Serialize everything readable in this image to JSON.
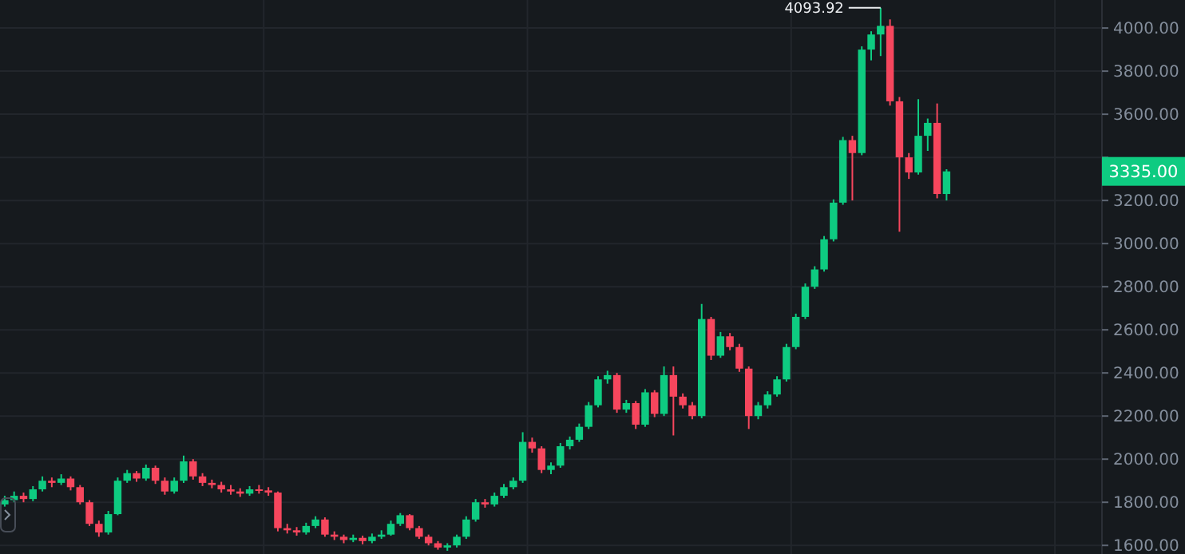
{
  "chart_data": {
    "type": "candlestick",
    "categories": [
      null,
      null,
      null,
      null,
      null,
      null,
      null,
      null,
      null,
      null,
      null,
      null,
      null,
      null,
      null,
      null,
      null,
      null,
      null,
      null,
      null,
      null,
      null,
      null,
      null,
      null,
      null,
      null,
      null,
      null,
      null,
      null,
      null,
      null,
      null,
      null,
      null,
      null,
      null,
      null,
      null,
      null,
      null,
      null,
      null,
      null,
      null,
      null,
      null,
      null,
      null,
      null,
      null,
      null,
      null,
      null,
      null,
      null,
      null,
      null,
      null,
      null,
      null,
      null,
      null,
      null,
      null,
      null,
      null,
      null,
      null,
      null,
      null,
      null,
      null,
      null,
      null,
      null,
      null,
      null,
      null,
      null,
      null,
      null,
      null,
      null,
      null,
      null,
      null,
      null,
      null,
      null,
      null,
      null,
      null,
      null,
      null,
      null,
      null,
      null,
      null,
      null,
      null,
      null,
      null,
      null,
      null,
      null,
      null,
      null,
      null,
      null,
      null,
      null,
      null,
      null,
      null
    ],
    "ohlc": [
      [
        1790,
        1830,
        1780,
        1810
      ],
      [
        1810,
        1850,
        1800,
        1830
      ],
      [
        1830,
        1845,
        1800,
        1815
      ],
      [
        1815,
        1875,
        1805,
        1860
      ],
      [
        1860,
        1920,
        1850,
        1900
      ],
      [
        1900,
        1915,
        1870,
        1890
      ],
      [
        1890,
        1930,
        1880,
        1910
      ],
      [
        1910,
        1920,
        1855,
        1870
      ],
      [
        1870,
        1880,
        1790,
        1800
      ],
      [
        1800,
        1810,
        1690,
        1700
      ],
      [
        1700,
        1715,
        1640,
        1660
      ],
      [
        1660,
        1760,
        1650,
        1745
      ],
      [
        1745,
        1915,
        1740,
        1900
      ],
      [
        1900,
        1950,
        1890,
        1935
      ],
      [
        1935,
        1945,
        1895,
        1910
      ],
      [
        1910,
        1975,
        1900,
        1960
      ],
      [
        1960,
        1970,
        1885,
        1900
      ],
      [
        1900,
        1915,
        1835,
        1850
      ],
      [
        1850,
        1915,
        1840,
        1900
      ],
      [
        1900,
        2016,
        1890,
        1990
      ],
      [
        1990,
        2000,
        1905,
        1920
      ],
      [
        1920,
        1935,
        1875,
        1890
      ],
      [
        1890,
        1905,
        1865,
        1880
      ],
      [
        1880,
        1895,
        1845,
        1860
      ],
      [
        1860,
        1880,
        1835,
        1850
      ],
      [
        1850,
        1865,
        1825,
        1840
      ],
      [
        1840,
        1875,
        1830,
        1860
      ],
      [
        1860,
        1880,
        1840,
        1855
      ],
      [
        1855,
        1870,
        1830,
        1845
      ],
      [
        1845,
        1850,
        1665,
        1680
      ],
      [
        1680,
        1700,
        1655,
        1670
      ],
      [
        1670,
        1685,
        1645,
        1660
      ],
      [
        1660,
        1705,
        1650,
        1690
      ],
      [
        1690,
        1735,
        1680,
        1720
      ],
      [
        1720,
        1730,
        1640,
        1650
      ],
      [
        1650,
        1665,
        1625,
        1640
      ],
      [
        1640,
        1650,
        1610,
        1625
      ],
      [
        1625,
        1650,
        1615,
        1635
      ],
      [
        1635,
        1645,
        1605,
        1620
      ],
      [
        1620,
        1655,
        1610,
        1640
      ],
      [
        1640,
        1670,
        1630,
        1650
      ],
      [
        1650,
        1715,
        1645,
        1700
      ],
      [
        1700,
        1750,
        1690,
        1740
      ],
      [
        1740,
        1745,
        1670,
        1680
      ],
      [
        1680,
        1690,
        1630,
        1640
      ],
      [
        1640,
        1650,
        1600,
        1610
      ],
      [
        1610,
        1620,
        1580,
        1590
      ],
      [
        1590,
        1610,
        1575,
        1600
      ],
      [
        1600,
        1650,
        1590,
        1640
      ],
      [
        1640,
        1735,
        1630,
        1720
      ],
      [
        1720,
        1815,
        1710,
        1800
      ],
      [
        1800,
        1815,
        1775,
        1790
      ],
      [
        1790,
        1845,
        1780,
        1830
      ],
      [
        1830,
        1885,
        1820,
        1870
      ],
      [
        1870,
        1915,
        1860,
        1900
      ],
      [
        1900,
        2125,
        1890,
        2080
      ],
      [
        2080,
        2100,
        2030,
        2050
      ],
      [
        2050,
        2060,
        1935,
        1950
      ],
      [
        1950,
        1985,
        1930,
        1970
      ],
      [
        1970,
        2075,
        1960,
        2060
      ],
      [
        2060,
        2105,
        2045,
        2090
      ],
      [
        2090,
        2165,
        2080,
        2150
      ],
      [
        2150,
        2265,
        2140,
        2250
      ],
      [
        2250,
        2385,
        2240,
        2370
      ],
      [
        2370,
        2410,
        2350,
        2390
      ],
      [
        2390,
        2400,
        2215,
        2230
      ],
      [
        2230,
        2275,
        2215,
        2260
      ],
      [
        2260,
        2270,
        2140,
        2160
      ],
      [
        2160,
        2325,
        2150,
        2310
      ],
      [
        2310,
        2320,
        2195,
        2210
      ],
      [
        2210,
        2430,
        2200,
        2390
      ],
      [
        2390,
        2430,
        2110,
        2290
      ],
      [
        2290,
        2305,
        2235,
        2250
      ],
      [
        2250,
        2265,
        2185,
        2200
      ],
      [
        2200,
        2720,
        2190,
        2650
      ],
      [
        2650,
        2660,
        2460,
        2480
      ],
      [
        2480,
        2590,
        2470,
        2570
      ],
      [
        2570,
        2585,
        2505,
        2520
      ],
      [
        2520,
        2535,
        2405,
        2420
      ],
      [
        2420,
        2430,
        2140,
        2200
      ],
      [
        2200,
        2265,
        2185,
        2250
      ],
      [
        2250,
        2315,
        2235,
        2300
      ],
      [
        2300,
        2385,
        2290,
        2370
      ],
      [
        2370,
        2535,
        2360,
        2520
      ],
      [
        2520,
        2675,
        2510,
        2660
      ],
      [
        2660,
        2815,
        2650,
        2800
      ],
      [
        2800,
        2895,
        2790,
        2880
      ],
      [
        2880,
        3035,
        2870,
        3020
      ],
      [
        3020,
        3205,
        3010,
        3190
      ],
      [
        3190,
        3495,
        3180,
        3480
      ],
      [
        3480,
        3500,
        3200,
        3420
      ],
      [
        3420,
        3915,
        3410,
        3900
      ],
      [
        3900,
        3985,
        3850,
        3970
      ],
      [
        3970,
        4093.92,
        3870,
        4010
      ],
      [
        4010,
        4040,
        3640,
        3660
      ],
      [
        3660,
        3680,
        3055,
        3400
      ],
      [
        3400,
        3420,
        3300,
        3330
      ],
      [
        3330,
        3670,
        3320,
        3500
      ],
      [
        3500,
        3580,
        3430,
        3560
      ],
      [
        3560,
        3650,
        3210,
        3230
      ],
      [
        3230,
        3345,
        3200,
        3335
      ],
      null,
      null,
      null,
      null,
      null,
      null,
      null,
      null,
      null,
      null,
      null,
      null,
      null,
      null,
      null,
      null
    ],
    "ylim": [
      1560,
      4130
    ],
    "yticks": [
      {
        "value": 1600,
        "label": "1600.00"
      },
      {
        "value": 1800,
        "label": "1800.00"
      },
      {
        "value": 2000,
        "label": "2000.00"
      },
      {
        "value": 2200,
        "label": "2200.00"
      },
      {
        "value": 2400,
        "label": "2400.00"
      },
      {
        "value": 2600,
        "label": "2600.00"
      },
      {
        "value": 2800,
        "label": "2800.00"
      },
      {
        "value": 3000,
        "label": "3000.00"
      },
      {
        "value": 3200,
        "label": "3200.00"
      },
      {
        "value": 3400,
        "label": null
      },
      {
        "value": 3600,
        "label": "3600.00"
      },
      {
        "value": 3800,
        "label": "3800.00"
      },
      {
        "value": 4000,
        "label": "4000.00"
      }
    ],
    "colors": [
      "#0ecb81",
      "#0ecb81",
      "#f6465d",
      "#0ecb81",
      "#0ecb81",
      "#f6465d",
      "#0ecb81",
      "#f6465d",
      "#f6465d",
      "#f6465d",
      "#f6465d",
      "#0ecb81",
      "#0ecb81",
      "#0ecb81",
      "#f6465d",
      "#0ecb81",
      "#f6465d",
      "#f6465d",
      "#0ecb81",
      "#0ecb81",
      "#f6465d",
      "#f6465d",
      "#f6465d",
      "#f6465d",
      "#f6465d",
      "#f6465d",
      "#0ecb81",
      "#f6465d",
      "#f6465d",
      "#f6465d",
      "#f6465d",
      "#f6465d",
      "#0ecb81",
      "#0ecb81",
      "#f6465d",
      "#f6465d",
      "#f6465d",
      "#0ecb81",
      "#f6465d",
      "#0ecb81",
      "#0ecb81",
      "#0ecb81",
      "#0ecb81",
      "#f6465d",
      "#f6465d",
      "#f6465d",
      "#f6465d",
      "#0ecb81",
      "#0ecb81",
      "#0ecb81",
      "#0ecb81",
      "#f6465d",
      "#0ecb81",
      "#0ecb81",
      "#0ecb81",
      "#0ecb81",
      "#f6465d",
      "#f6465d",
      "#0ecb81",
      "#0ecb81",
      "#0ecb81",
      "#0ecb81",
      "#0ecb81",
      "#0ecb81",
      "#0ecb81",
      "#f6465d",
      "#0ecb81",
      "#f6465d",
      "#0ecb81",
      "#f6465d",
      "#0ecb81",
      "#f6465d",
      "#f6465d",
      "#f6465d",
      "#0ecb81",
      "#f6465d",
      "#0ecb81",
      "#f6465d",
      "#f6465d",
      "#f6465d",
      "#0ecb81",
      "#0ecb81",
      "#0ecb81",
      "#0ecb81",
      "#0ecb81",
      "#0ecb81",
      "#0ecb81",
      "#0ecb81",
      "#0ecb81",
      "#0ecb81",
      "#f6465d",
      "#0ecb81",
      "#0ecb81",
      "#0ecb81",
      "#f6465d",
      "#f6465d",
      "#f6465d",
      "#0ecb81",
      "#0ecb81",
      "#f6465d",
      "#0ecb81",
      null,
      null,
      null,
      null,
      null,
      null,
      null,
      null,
      null,
      null,
      null,
      null,
      null,
      null,
      null,
      null
    ],
    "grid": true,
    "tick_labels": "y",
    "annotations": [
      "4093.92",
      "3335.00"
    ]
  }
}
